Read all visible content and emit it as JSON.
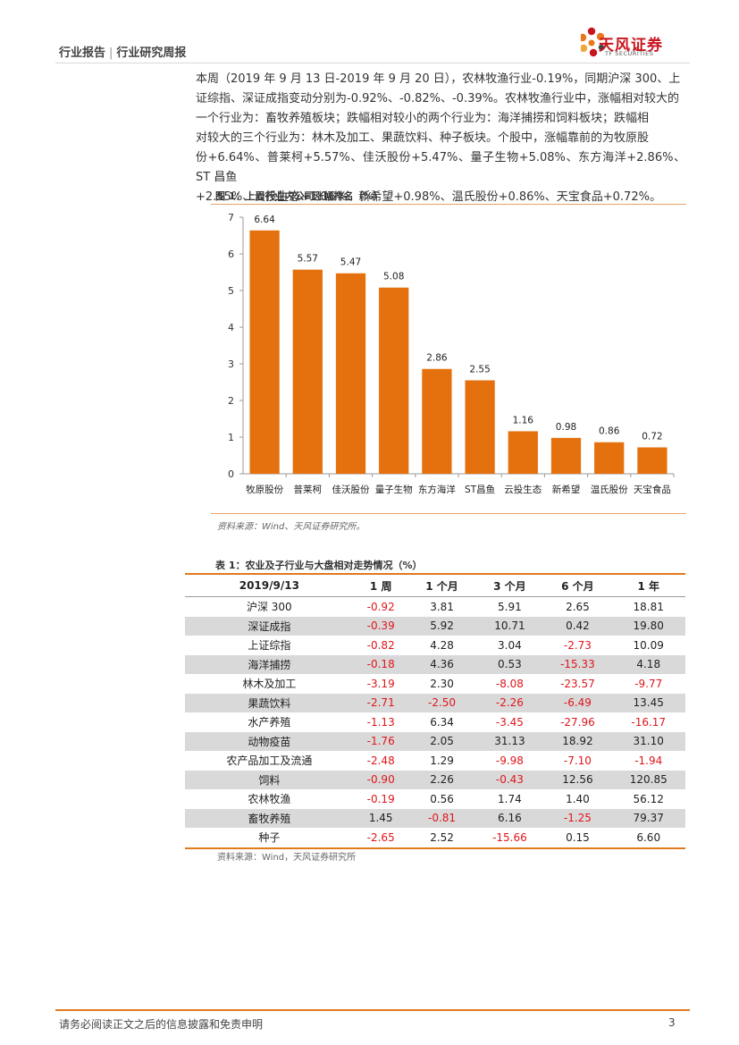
{
  "header": {
    "report_type": "行业报告",
    "separator": "|",
    "report_series": "行业研究周报",
    "logo_cn": "天风证券",
    "logo_en": "TF SECURITIES",
    "logo_colors": [
      "#c8141e",
      "#e8781e",
      "#f0a83c",
      "#444444"
    ]
  },
  "intro": {
    "lines": [
      "本周（2019 年 9 月 13 日-2019 年 9 月 20 日），农林牧渔行业-0.19%，同期沪深 300、上",
      "证综指、深证成指变动分别为-0.92%、-0.82%、-0.39%。农林牧渔行业中，涨幅相对较大的",
      "一个行业为：畜牧养殖板块；跌幅相对较小的两个行业为：海洋捕捞和饲料板块；跌幅相",
      "对较大的三个行业为：林木及加工、果蔬饮料、种子板块。个股中，涨幅靠前的为牧原股",
      "份+6.64%、普莱柯+5.57%、佳沃股份+5.47%、量子生物+5.08%、东方海洋+2.86%、ST 昌鱼",
      "+2.55%、云投生态+1.16%、新希望+0.98%、温氏股份+0.86%、天宝食品+0.72%。"
    ]
  },
  "figure1": {
    "title": "图 1：上周行业内公司涨幅排名（%）",
    "source": "资料来源：Wind、天风证券研究所。"
  },
  "chart_data": {
    "type": "bar",
    "title": "上周行业内公司涨幅排名（%）",
    "categories": [
      "牧原股份",
      "普莱柯",
      "佳沃股份",
      "量子生物",
      "东方海洋",
      "ST昌鱼",
      "云投生态",
      "新希望",
      "温氏股份",
      "天宝食品"
    ],
    "values": [
      6.64,
      5.57,
      5.47,
      5.08,
      2.86,
      2.55,
      1.16,
      0.98,
      0.86,
      0.72
    ],
    "value_labels": [
      "6.64",
      "5.57",
      "5.47",
      "5.08",
      "2.86",
      "2.55",
      "1.16",
      "0.98",
      "0.86",
      "0.72"
    ],
    "yticks": [
      "0",
      "1",
      "2",
      "3",
      "4",
      "5",
      "6",
      "7"
    ],
    "ylim": [
      0,
      7
    ],
    "xlabel": "",
    "ylabel": "",
    "grid": false,
    "bar_color": "#e5710e"
  },
  "table1": {
    "title": "表 1：农业及子行业与大盘相对走势情况（%）",
    "headers": [
      "2019/9/13",
      "1 周",
      "1 个月",
      "3 个月",
      "6 个月",
      "1 年"
    ],
    "rows": [
      [
        "沪深 300",
        "-0.92",
        "3.81",
        "5.91",
        "2.65",
        "18.81"
      ],
      [
        "深证成指",
        "-0.39",
        "5.92",
        "10.71",
        "0.42",
        "19.80"
      ],
      [
        "上证综指",
        "-0.82",
        "4.28",
        "3.04",
        "-2.73",
        "10.09"
      ],
      [
        "海洋捕捞",
        "-0.18",
        "4.36",
        "0.53",
        "-15.33",
        "4.18"
      ],
      [
        "林木及加工",
        "-3.19",
        "2.30",
        "-8.08",
        "-23.57",
        "-9.77"
      ],
      [
        "果蔬饮料",
        "-2.71",
        "-2.50",
        "-2.26",
        "-6.49",
        "13.45"
      ],
      [
        "水产养殖",
        "-1.13",
        "6.34",
        "-3.45",
        "-27.96",
        "-16.17"
      ],
      [
        "动物疫苗",
        "-1.76",
        "2.05",
        "31.13",
        "18.92",
        "31.10"
      ],
      [
        "农产品加工及流通",
        "-2.48",
        "1.29",
        "-9.98",
        "-7.10",
        "-1.94"
      ],
      [
        "饲料",
        "-0.90",
        "2.26",
        "-0.43",
        "12.56",
        "120.85"
      ],
      [
        "农林牧渔",
        "-0.19",
        "0.56",
        "1.74",
        "1.40",
        "56.12"
      ],
      [
        "畜牧养殖",
        "1.45",
        "-0.81",
        "6.16",
        "-1.25",
        "79.37"
      ],
      [
        "种子",
        "-2.65",
        "2.52",
        "-15.66",
        "0.15",
        "6.60"
      ]
    ],
    "source": "资料来源：Wind，天风证券研究所",
    "negative_color": "#e0161b"
  },
  "footer": {
    "disclaimer": "请务必阅读正文之后的信息披露和免责申明",
    "page_number": "3"
  }
}
